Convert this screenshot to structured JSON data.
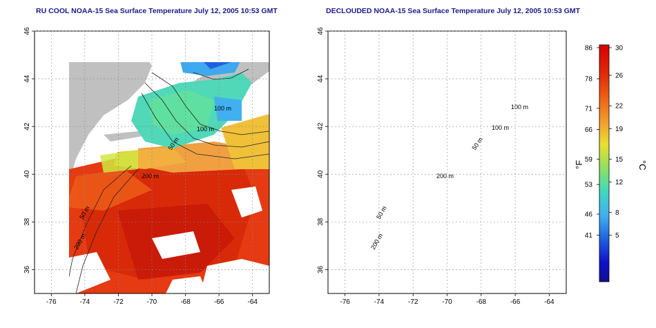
{
  "maps": [
    {
      "title": "RU COOL NOAA-15 Sea Surface Temperature July 12, 2005 10:53 GMT",
      "contour_labels": [
        "100 m",
        "100 m",
        "50 m",
        "200 m",
        "50 m",
        "200 m"
      ]
    },
    {
      "title": "DECLOUDED NOAA-15 Sea Surface Temperature July 12, 2005 10:53 GMT",
      "contour_labels": [
        "100 m",
        "100 m",
        "50 m",
        "200 m",
        "50 m",
        "200 m"
      ]
    }
  ],
  "axes": {
    "x_ticks": [
      "-76",
      "-74",
      "-72",
      "-70",
      "-68",
      "-66",
      "-64"
    ],
    "y_ticks": [
      "46",
      "44",
      "42",
      "40",
      "38",
      "36"
    ],
    "x_range": [
      -77,
      -63
    ],
    "y_range": [
      35,
      46
    ]
  },
  "colorbar": {
    "fahrenheit_label": "°F",
    "celsius_label": "°C",
    "fahrenheit_ticks": [
      "86",
      "78",
      "71",
      "66",
      "59",
      "53",
      "46",
      "41"
    ],
    "celsius_ticks": [
      "30",
      "26",
      "22",
      "19",
      "15",
      "12",
      "8",
      "5"
    ],
    "colors": [
      "#d80000",
      "#e83010",
      "#f06a18",
      "#f2a030",
      "#e8e030",
      "#90e060",
      "#40d8c0",
      "#40b0f0",
      "#2060e0",
      "#1010c8",
      "#101090"
    ]
  },
  "colors": {
    "land": "#c0c0c0",
    "cloud": "#ffffff",
    "title": "#1a1a8c"
  }
}
